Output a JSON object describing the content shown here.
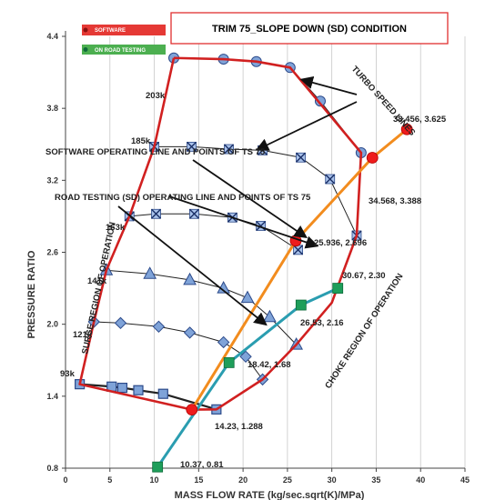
{
  "chart_data": {
    "type": "line",
    "title": "TRIM  75_SLOPE DOWN (SD) CONDITION",
    "xlabel": "MASS FLOW RATE   (kg/sec.sqrt(K)/MPa)",
    "ylabel": "PRESSURE  RATIO",
    "xlim": [
      0,
      45
    ],
    "ylim": [
      0.8,
      4.4
    ],
    "x_ticks": [
      "0",
      "5",
      "10",
      "15",
      "20",
      "25",
      "30",
      "35",
      "40",
      "45"
    ],
    "y_ticks": [
      "0.8",
      "1.4",
      "2.0",
      "2.6",
      "3.2",
      "3.8",
      "4.4"
    ],
    "legend": [
      {
        "name": "SOFTWARE",
        "color": "#e53935"
      },
      {
        "name": "ON ROAD TESTING",
        "color": "#1e9e5a"
      }
    ],
    "speed_lines": [
      {
        "name": "93k",
        "marker": "square",
        "points": [
          [
            1.6,
            1.5
          ],
          [
            5.2,
            1.48
          ],
          [
            6.4,
            1.47
          ],
          [
            8.2,
            1.45
          ],
          [
            11.0,
            1.42
          ],
          [
            17.0,
            1.29
          ]
        ]
      },
      {
        "name": "121k",
        "marker": "diamond",
        "points": [
          [
            3.2,
            2.02
          ],
          [
            6.2,
            2.01
          ],
          [
            10.5,
            1.98
          ],
          [
            14.0,
            1.93
          ],
          [
            17.8,
            1.85
          ],
          [
            20.3,
            1.73
          ],
          [
            22.2,
            1.54
          ]
        ]
      },
      {
        "name": "141k",
        "marker": "triangle",
        "points": [
          [
            4.6,
            2.45
          ],
          [
            9.5,
            2.42
          ],
          [
            14.0,
            2.37
          ],
          [
            17.8,
            2.3
          ],
          [
            20.5,
            2.22
          ],
          [
            23.0,
            2.06
          ],
          [
            26.0,
            1.83
          ]
        ]
      },
      {
        "name": "163k",
        "marker": "x-box",
        "points": [
          [
            7.2,
            2.9
          ],
          [
            10.2,
            2.92
          ],
          [
            14.5,
            2.92
          ],
          [
            18.8,
            2.89
          ],
          [
            22.0,
            2.82
          ],
          [
            26.2,
            2.62
          ]
        ]
      },
      {
        "name": "185k",
        "marker": "x-box",
        "points": [
          [
            10.0,
            3.48
          ],
          [
            14.2,
            3.48
          ],
          [
            18.4,
            3.46
          ],
          [
            22.2,
            3.45
          ],
          [
            26.5,
            3.39
          ],
          [
            29.8,
            3.21
          ],
          [
            32.8,
            2.74
          ]
        ]
      },
      {
        "name": "203k",
        "marker": "circle",
        "points": [
          [
            12.2,
            4.22
          ],
          [
            17.8,
            4.21
          ],
          [
            21.5,
            4.19
          ],
          [
            25.3,
            4.14
          ],
          [
            28.7,
            3.86
          ],
          [
            33.3,
            3.43
          ]
        ]
      }
    ],
    "boundary_points": [
      [
        12.2,
        4.22
      ],
      [
        17.8,
        4.21
      ],
      [
        21.5,
        4.19
      ],
      [
        25.3,
        4.14
      ],
      [
        33.3,
        3.43
      ],
      [
        32.8,
        2.74
      ],
      [
        30.0,
        2.18
      ],
      [
        26.0,
        1.83
      ],
      [
        22.2,
        1.54
      ],
      [
        17.0,
        1.29
      ],
      [
        14.23,
        1.288
      ],
      [
        1.6,
        1.5
      ],
      [
        3.2,
        2.02
      ],
      [
        4.6,
        2.45
      ],
      [
        7.2,
        2.9
      ],
      [
        10.0,
        3.48
      ],
      [
        12.2,
        4.22
      ]
    ],
    "series": [
      {
        "name": "SOFTWARE",
        "color": "#f28c1e",
        "points": [
          [
            14.23,
            1.288
          ],
          [
            25.936,
            2.696
          ],
          [
            34.568,
            3.388
          ],
          [
            38.456,
            3.625
          ]
        ],
        "labels": [
          "14.23, 1.288",
          "25.936, 2.696",
          "34.568, 3.388",
          "38.456, 3.625"
        ]
      },
      {
        "name": "ON ROAD TESTING",
        "color": "#2a9db0",
        "points": [
          [
            10.37,
            0.81
          ],
          [
            18.42,
            1.68
          ],
          [
            26.53,
            2.16
          ],
          [
            30.67,
            2.3
          ]
        ],
        "labels": [
          "10.37, 0.81",
          "18.42, 1.68",
          "26.53, 2.16",
          "30.67, 2.30"
        ]
      }
    ],
    "annotations": {
      "turbo_speed": "TURBO SPEED LINES",
      "software_line": "SOFTWARE  OPERATING  LINE AND  POINTS OF TS 75",
      "road_line": "ROAD TESTING  (SD)  OPERATING LINE AND POINTS OF  TS 75",
      "surge": "SURGE REGION OF OPERATION",
      "choke": "CHOKE REGION OF OPERATION"
    }
  }
}
